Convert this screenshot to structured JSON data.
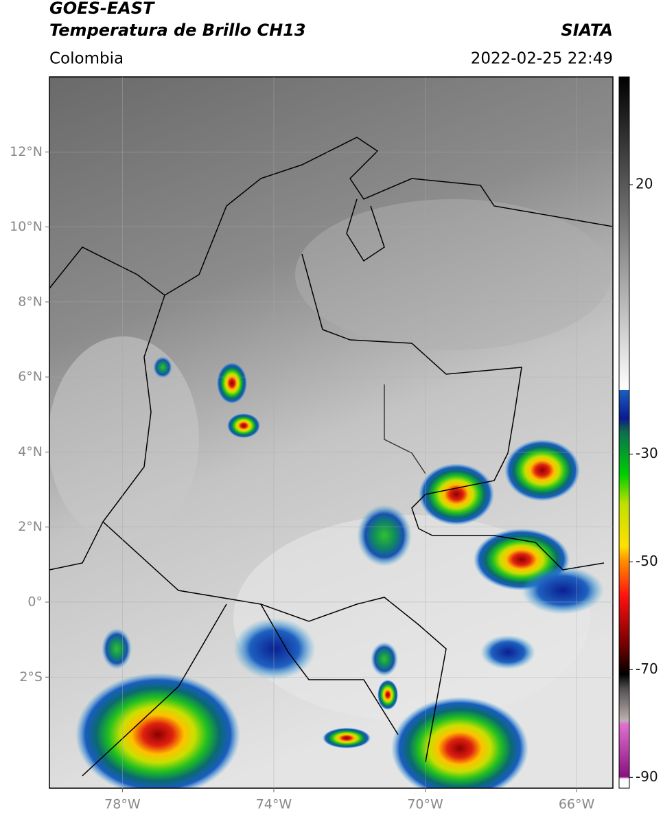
{
  "header": {
    "title": "GOES-EAST",
    "subtitle": "Temperatura de Brillo CH13",
    "region": "Colombia",
    "source": "SIATA",
    "datetime": "2022-02-25 22:49"
  },
  "map": {
    "xlim": [
      -79.93,
      -65.04
    ],
    "ylim": [
      -4.96,
      14.0
    ],
    "xticks": [
      {
        "value": -78,
        "label": "78°W"
      },
      {
        "value": -74,
        "label": "74°W"
      },
      {
        "value": -70,
        "label": "70°W"
      },
      {
        "value": -66,
        "label": "66°W"
      }
    ],
    "yticks": [
      {
        "value": 12,
        "label": "12°N"
      },
      {
        "value": 10,
        "label": "10°N"
      },
      {
        "value": 8,
        "label": "8°N"
      },
      {
        "value": 6,
        "label": "6°N"
      },
      {
        "value": 4,
        "label": "4°N"
      },
      {
        "value": 2,
        "label": "2°N"
      },
      {
        "value": 0,
        "label": "0°"
      },
      {
        "value": -2,
        "label": "2°S"
      }
    ],
    "grid": true
  },
  "colorbar": {
    "ylim": [
      -92,
      40
    ],
    "yticks": [
      20,
      -30,
      -50,
      -70,
      -90
    ]
  }
}
